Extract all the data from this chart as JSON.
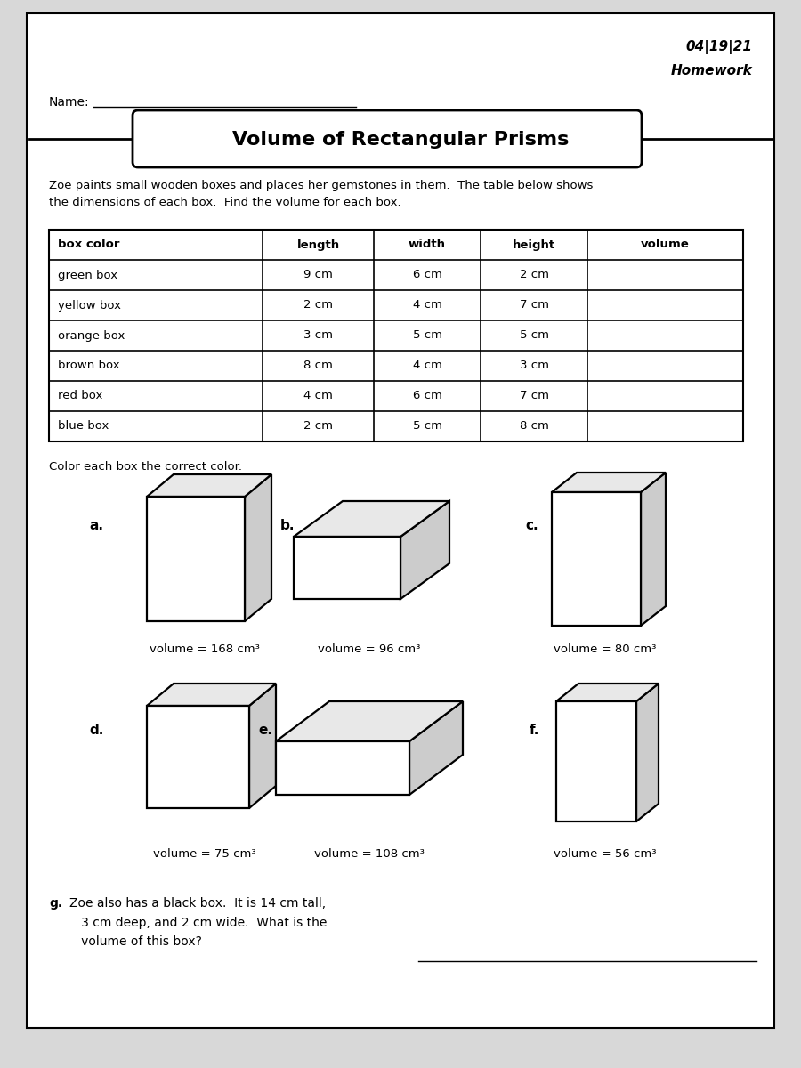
{
  "date_text": "04|19|21",
  "homework_text": "Homework",
  "name_label": "Name:",
  "title": "Volume of Rectangular Prisms",
  "intro_text": "Zoe paints small wooden boxes and places her gemstones in them.  The table below shows\nthe dimensions of each box.  Find the volume for each box.",
  "table_headers": [
    "box color",
    "length",
    "width",
    "height",
    "volume"
  ],
  "table_rows": [
    [
      "green box",
      "9 cm",
      "6 cm",
      "2 cm",
      ""
    ],
    [
      "yellow box",
      "2 cm",
      "4 cm",
      "7 cm",
      ""
    ],
    [
      "orange box",
      "3 cm",
      "5 cm",
      "5 cm",
      ""
    ],
    [
      "brown box",
      "8 cm",
      "4 cm",
      "3 cm",
      ""
    ],
    [
      "red box",
      "4 cm",
      "6 cm",
      "7 cm",
      ""
    ],
    [
      "blue box",
      "2 cm",
      "5 cm",
      "8 cm",
      ""
    ]
  ],
  "color_instruction": "Color each box the correct color.",
  "box_labels": [
    "a.",
    "b.",
    "c.",
    "d.",
    "e.",
    "f."
  ],
  "box_volumes": [
    "volume = 168 cm³",
    "volume = 96 cm³",
    "volume = 80 cm³",
    "volume = 75 cm³",
    "volume = 108 cm³",
    "volume = 56 cm³"
  ],
  "question_g_bold": "g.",
  "question_g_text": "  Zoe also has a black box.  It is 14 cm tall,\n   3 cm deep, and 2 cm wide.  What is the\n   volume of this box?",
  "bg_color": "#d8d8d8",
  "paper_color": "#ffffff",
  "border_color": "#000000"
}
